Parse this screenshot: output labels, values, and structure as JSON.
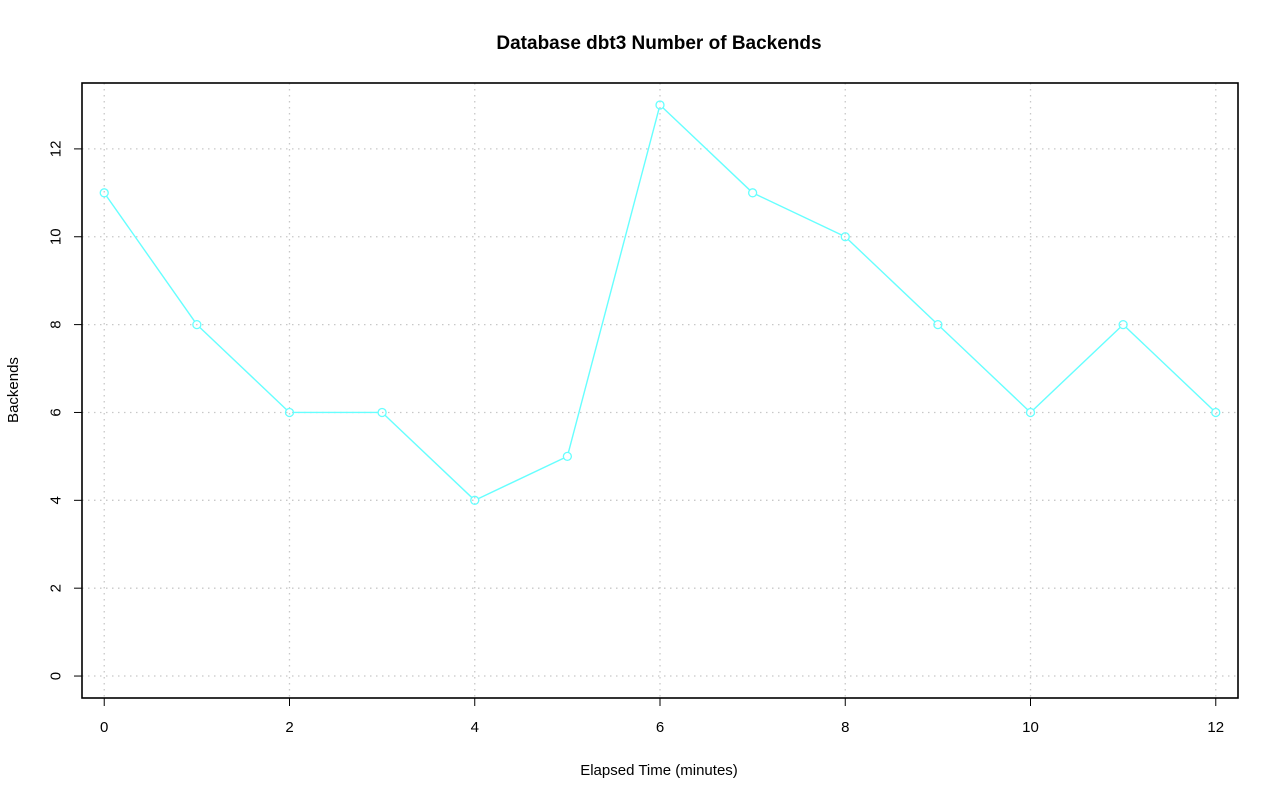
{
  "chart_data": {
    "type": "line",
    "title": "Database dbt3 Number of Backends",
    "xlabel": "Elapsed Time (minutes)",
    "ylabel": "Backends",
    "x": [
      0,
      1,
      2,
      3,
      4,
      5,
      6,
      7,
      8,
      9,
      10,
      11,
      12
    ],
    "series": [
      {
        "values": [
          11,
          8,
          6,
          6,
          4,
          5,
          13,
          11,
          10,
          8,
          6,
          8,
          6
        ],
        "color": "#66ffff",
        "marker": "open-circle"
      }
    ],
    "xlim": [
      -0.24,
      12.24
    ],
    "ylim": [
      -0.5,
      13.5
    ],
    "xticks": [
      0,
      2,
      4,
      6,
      8,
      10,
      12
    ],
    "yticks": [
      0,
      2,
      4,
      6,
      8,
      10,
      12
    ],
    "grid": true
  }
}
